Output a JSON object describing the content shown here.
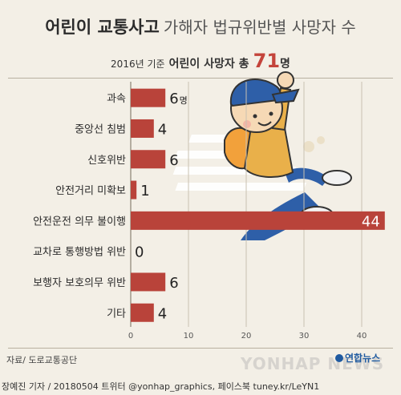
{
  "header": {
    "title_bold": "어린이 교통사고",
    "title_light": "가해자 법규위반별 사망자 수",
    "subtitle_year": "2016년 기준",
    "subtitle_main": "어린이 사망자 총",
    "subtitle_total": "71",
    "subtitle_unit": "명"
  },
  "chart_data": {
    "type": "bar",
    "orientation": "horizontal",
    "categories": [
      "과속",
      "중앙선 침범",
      "신호위반",
      "안전거리 미확보",
      "안전운전 의무 불이행",
      "교차로 통행방법 위반",
      "보행자 보호의무 위반",
      "기타"
    ],
    "values": [
      6,
      4,
      6,
      1,
      44,
      0,
      6,
      4
    ],
    "value_labels": [
      "6",
      "4",
      "6",
      "1",
      "44",
      "0",
      "6",
      "4"
    ],
    "first_value_unit": "명",
    "xlim": [
      0,
      45
    ],
    "xticks": [
      "0",
      "10",
      "20",
      "30",
      "40"
    ],
    "grid": true,
    "bar_color": "#b9433a"
  },
  "footer": {
    "source": "자료/ 도로교통공단",
    "credits": "장예진 기자 / 20180504 트위터 @yonhap_graphics, 페이스북 tuney.kr/LeYN1",
    "agency": "연합뉴스",
    "watermark": "YONHAP NEWS"
  }
}
